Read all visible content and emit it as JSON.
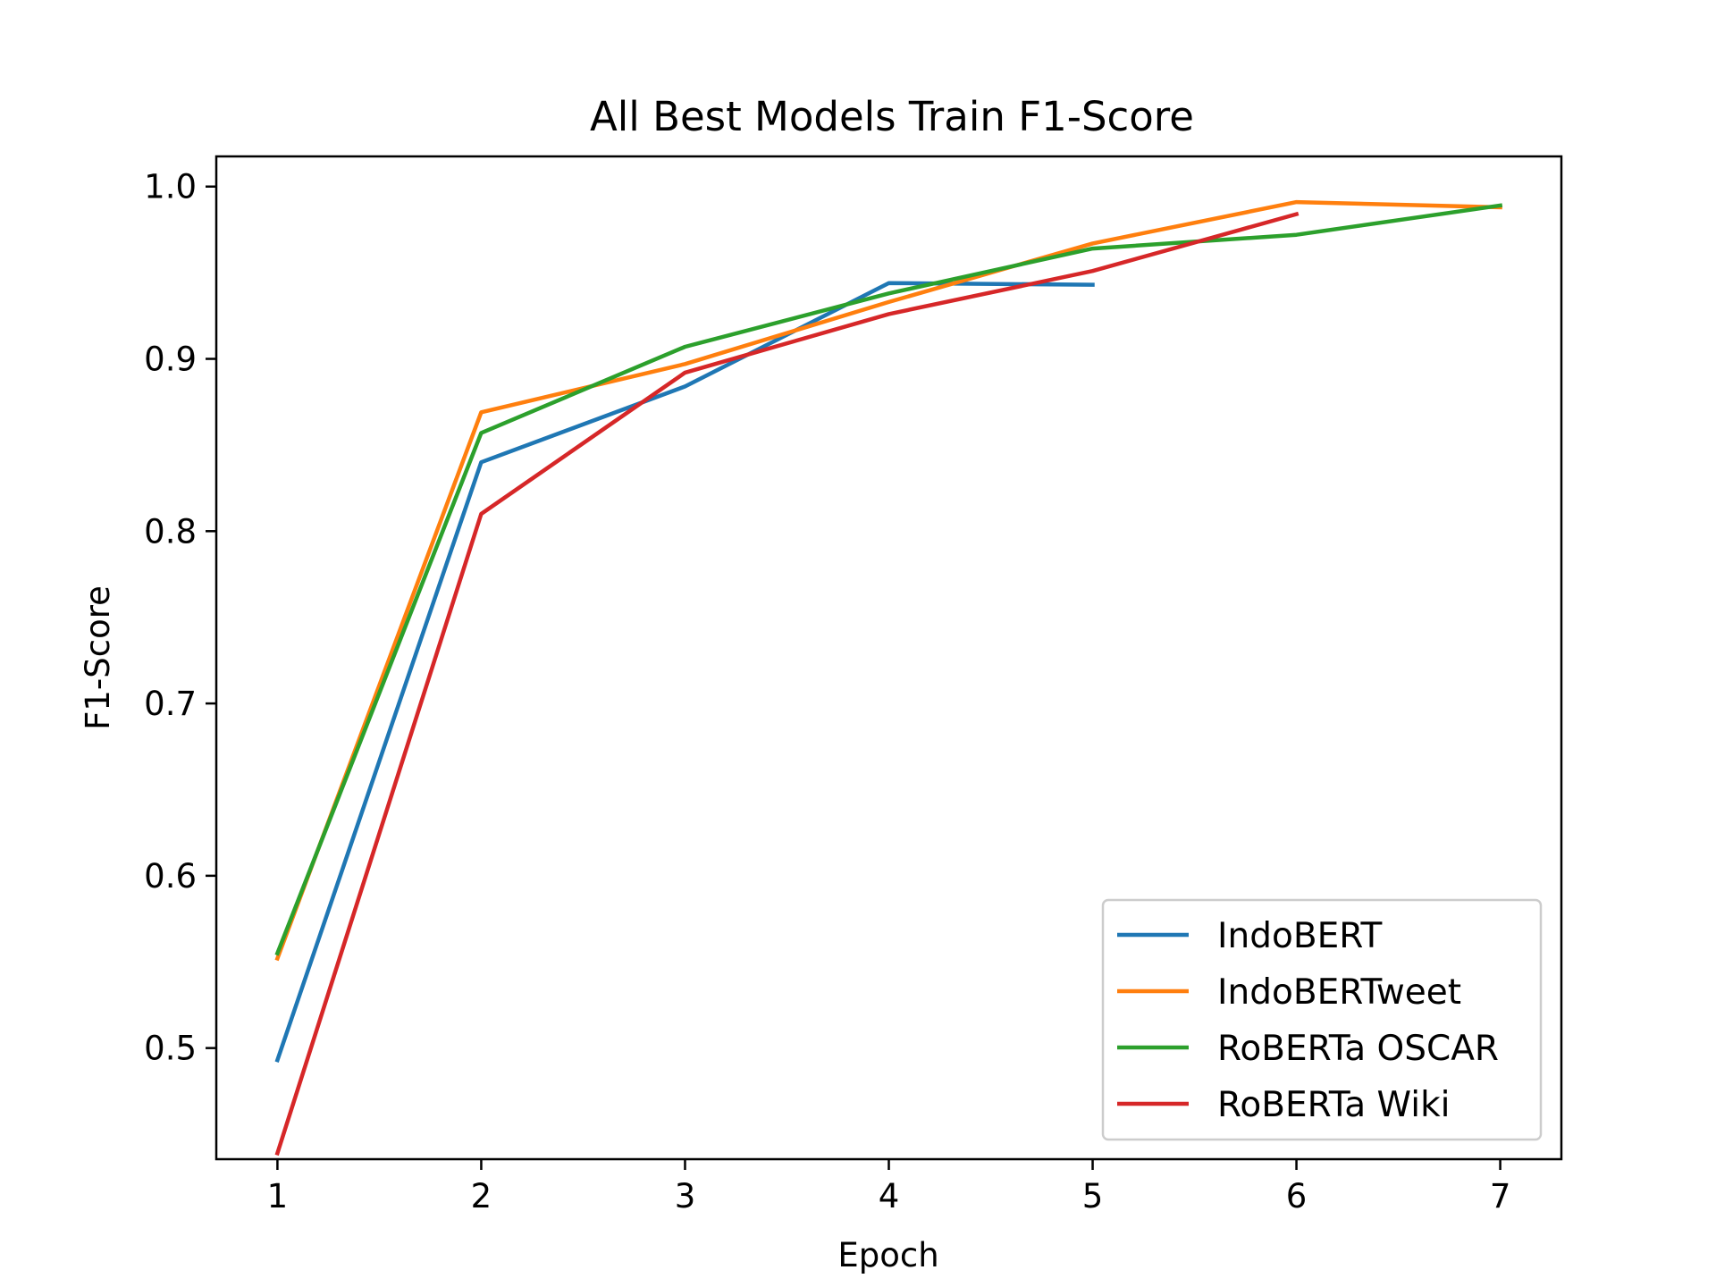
{
  "chart_data": {
    "type": "line",
    "title": "All Best Models Train F1-Score",
    "xlabel": "Epoch",
    "ylabel": "F1-Score",
    "xlim": [
      0.7,
      7.3
    ],
    "ylim": [
      0.4355,
      1.0175
    ],
    "xticks": [
      1,
      2,
      3,
      4,
      5,
      6,
      7
    ],
    "yticks": [
      0.5,
      0.6,
      0.7,
      0.8,
      0.9,
      1.0
    ],
    "xtick_labels": [
      "1",
      "2",
      "3",
      "4",
      "5",
      "6",
      "7"
    ],
    "ytick_labels": [
      "0.5",
      "0.6",
      "0.7",
      "0.8",
      "0.9",
      "1.0"
    ],
    "grid": false,
    "legend": "lower-right",
    "series": [
      {
        "name": "IndoBERT",
        "color": "#1f77b4",
        "x": [
          1,
          2,
          3,
          4,
          5
        ],
        "y": [
          0.493,
          0.84,
          0.884,
          0.944,
          0.943
        ]
      },
      {
        "name": "IndoBERTweet",
        "color": "#ff7f0e",
        "x": [
          1,
          2,
          3,
          4,
          5,
          6,
          7
        ],
        "y": [
          0.552,
          0.869,
          0.897,
          0.933,
          0.967,
          0.991,
          0.988
        ]
      },
      {
        "name": "RoBERTa OSCAR",
        "color": "#2ca02c",
        "x": [
          1,
          2,
          3,
          4,
          5,
          6,
          7
        ],
        "y": [
          0.555,
          0.857,
          0.907,
          0.938,
          0.964,
          0.972,
          0.989
        ]
      },
      {
        "name": "RoBERTa Wiki",
        "color": "#d62728",
        "x": [
          1,
          2,
          3,
          4,
          5,
          6
        ],
        "y": [
          0.439,
          0.81,
          0.892,
          0.926,
          0.951,
          0.984
        ]
      }
    ]
  }
}
